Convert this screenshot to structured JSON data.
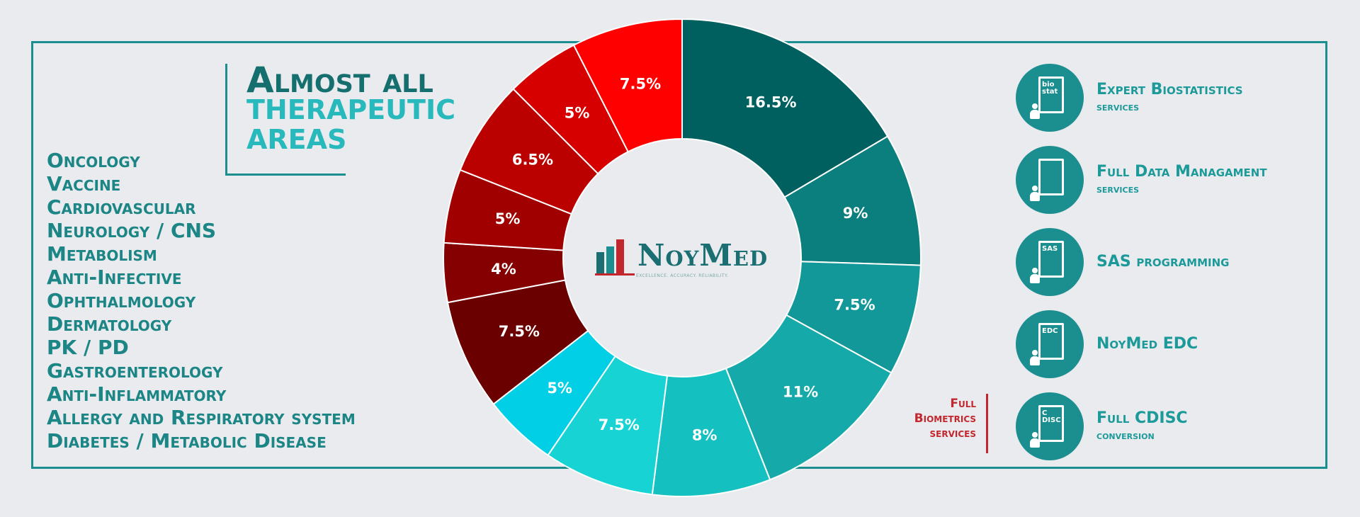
{
  "heading": {
    "line1": "Almost all",
    "line2": "THERAPEUTIC",
    "line3": "AREAS"
  },
  "therapeutic_areas": [
    "Oncology",
    "Vaccine",
    "Cardiovascular",
    "Neurology / CNS",
    "Metabolism",
    "Anti-Infective",
    "Ophthalmology",
    "Dermatology",
    "PK / PD",
    "Gastroenterology",
    "Anti-Inflammatory",
    "Allergy and Respiratory system",
    "Diabetes / Metabolic Disease"
  ],
  "logo": {
    "name": "NoyMed",
    "tagline": "EXCELLENCE. ACCURACY. RELIABILITY."
  },
  "biometrics_label": {
    "line1": "Full",
    "line2": "Biometrics",
    "line3": "services"
  },
  "services": [
    {
      "title": "Expert Biostatistics",
      "subtitle": "services",
      "icon": "biostat-icon",
      "icon_text": "bio stat"
    },
    {
      "title": "Full Data Managament",
      "subtitle": "services",
      "icon": "data-management-icon",
      "icon_text": ""
    },
    {
      "title": "SAS programming",
      "subtitle": "",
      "icon": "sas-icon",
      "icon_text": "SAS"
    },
    {
      "title": "NoyMed EDC",
      "subtitle": "",
      "icon": "edc-icon",
      "icon_text": "EDC"
    },
    {
      "title": "Full CDISC",
      "subtitle": "conversion",
      "icon": "cdisc-icon",
      "icon_text": "C DISC"
    }
  ],
  "chart_data": {
    "type": "pie",
    "donut": true,
    "title": "",
    "labels": [
      "16.5%",
      "9%",
      "7.5%",
      "11%",
      "8%",
      "7.5%",
      "5%",
      "7.5%",
      "4%",
      "5%",
      "6.5%",
      "5%",
      "7.5%"
    ],
    "values": [
      16.5,
      9,
      7.5,
      11,
      8,
      7.5,
      5,
      7.5,
      4,
      5,
      6.5,
      5,
      7.5
    ],
    "colors": [
      "#006060",
      "#0b7e7e",
      "#129898",
      "#16a9a9",
      "#14c0c0",
      "#17d3d3",
      "#00cfe6",
      "#6b0000",
      "#850000",
      "#a00000",
      "#bb0000",
      "#d60000",
      "#ff0000"
    ],
    "legend": "none",
    "center_logo": "NoyMed"
  }
}
